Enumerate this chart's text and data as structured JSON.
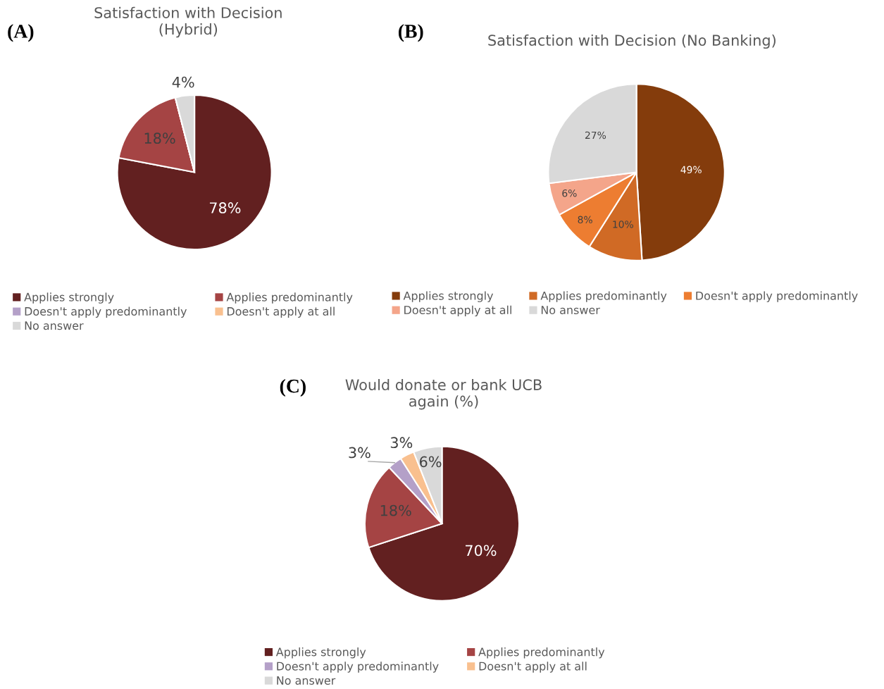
{
  "chart_data": [
    {
      "type": "pie",
      "title": "Satisfaction with Decision\n(Hybrid)",
      "annotations": [
        "(A)"
      ],
      "legend": "bottom",
      "categories": [
        "Applies strongly",
        "Applies predominantly",
        "Doesn't apply predominantly",
        "Doesn't apply at all",
        "No answer"
      ],
      "values": [
        78,
        18,
        0,
        0,
        4
      ],
      "colors": [
        "#622020",
        "#a54444",
        "#b4a0c8",
        "#f9c08f",
        "#d9d9d9"
      ],
      "value_labels": [
        "78%",
        "18%",
        null,
        null,
        "4%"
      ]
    },
    {
      "type": "pie",
      "title": "Satisfaction with Decision (No Banking)",
      "annotations": [
        "(B)"
      ],
      "legend": "bottom",
      "categories": [
        "Applies strongly",
        "Applies predominantly",
        "Doesn't apply predominantly",
        "Doesn't apply at all",
        "No answer"
      ],
      "values": [
        49,
        10,
        8,
        6,
        27
      ],
      "colors": [
        "#843c0c",
        "#d06a25",
        "#ed7d31",
        "#f4a58a",
        "#d9d9d9"
      ],
      "value_labels": [
        "49%",
        "10%",
        "8%",
        "6%",
        "27%"
      ]
    },
    {
      "type": "pie",
      "title": "Would donate or bank UCB\nagain (%)",
      "annotations": [
        "(C)"
      ],
      "legend": "bottom",
      "categories": [
        "Applies strongly",
        "Applies predominantly",
        "Doesn't apply predominantly",
        "Doesn't apply at all",
        "No answer"
      ],
      "values": [
        70,
        18,
        3,
        3,
        6
      ],
      "colors": [
        "#622020",
        "#a54444",
        "#b4a0c8",
        "#f9c08f",
        "#d9d9d9"
      ],
      "value_labels": [
        "70%",
        "18%",
        "3%",
        "3%",
        "6%"
      ]
    }
  ]
}
